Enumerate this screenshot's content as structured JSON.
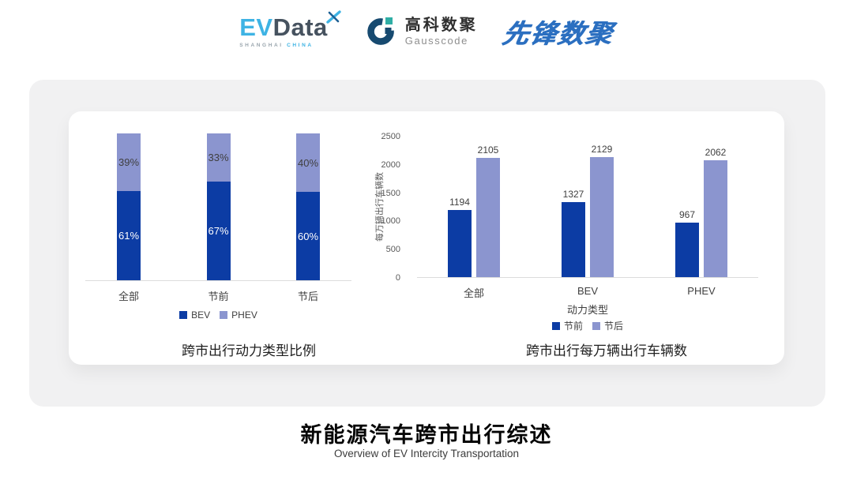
{
  "header": {
    "evdata": {
      "ev": "EV",
      "data": "Data",
      "sub_left": "SHANGHAI",
      "sub_right": "CHINA"
    },
    "gausscode": {
      "cn": "高科数聚",
      "en": "Gausscode"
    },
    "xianfeng": {
      "text": "先锋数聚"
    }
  },
  "colors": {
    "series_dark_blue": "#0C3CA4",
    "series_light_blue": "#8B95CF",
    "evdata_blue": "#3EB3E4",
    "evdata_dark": "#46525F",
    "gauss_navy": "#174A70",
    "gauss_teal": "#2FAEA5",
    "xianfeng_blue": "#2B6FC0",
    "card_gray": "#F1F1F2",
    "axis_line": "#DCDCDC"
  },
  "chart_data": [
    {
      "type": "bar",
      "subtype": "stacked-percent",
      "title": "跨市出行动力类型比例",
      "categories": [
        "全部",
        "节前",
        "节后"
      ],
      "series": [
        {
          "name": "BEV",
          "color": "#0C3CA4",
          "values": [
            61,
            67,
            60
          ],
          "labels": [
            "61%",
            "67%",
            "60%"
          ]
        },
        {
          "name": "PHEV",
          "color": "#8B95CF",
          "values": [
            39,
            33,
            40
          ],
          "labels": [
            "39%",
            "33%",
            "40%"
          ]
        }
      ],
      "ylim": [
        0,
        100
      ],
      "grid": false,
      "legend_position": "bottom"
    },
    {
      "type": "bar",
      "subtype": "grouped",
      "title": "跨市出行每万辆出行车辆数",
      "categories": [
        "全部",
        "BEV",
        "PHEV"
      ],
      "xlabel": "动力类型",
      "ylabel": "每万辆出行车辆数",
      "yticks": [
        0,
        500,
        1000,
        1500,
        2000,
        2500
      ],
      "ylim": [
        0,
        2500
      ],
      "grid": false,
      "series": [
        {
          "name": "节前",
          "color": "#0C3CA4",
          "values": [
            1194,
            1327,
            967
          ]
        },
        {
          "name": "节后",
          "color": "#8B95CF",
          "values": [
            2105,
            2129,
            2062
          ]
        }
      ],
      "legend_position": "bottom"
    }
  ],
  "footer": {
    "title": "新能源汽车跨市出行综述",
    "subtitle": "Overview of EV Intercity Transportation"
  }
}
